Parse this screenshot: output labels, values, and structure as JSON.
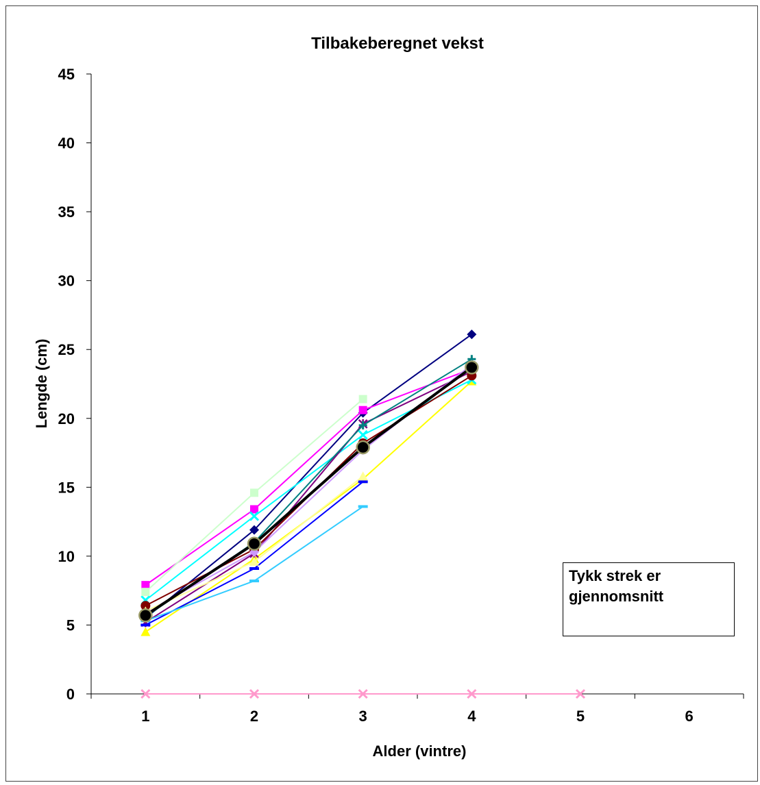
{
  "chart_data": {
    "type": "line",
    "title": "Tilbakeberegnet vekst",
    "xlabel": "Alder (vintre)",
    "ylabel": "Lengde (cm)",
    "x_ticks": [
      "1",
      "2",
      "3",
      "4",
      "5",
      "6"
    ],
    "y_ticks": [
      "0",
      "5",
      "10",
      "15",
      "20",
      "25",
      "30",
      "35",
      "40",
      "45"
    ],
    "ylim": [
      0,
      45
    ],
    "xlim": [
      0.5,
      6.5
    ],
    "grid": false,
    "legend": "none",
    "series": [
      {
        "color": "#000080",
        "marker": "diamond",
        "x": [
          1,
          2,
          3,
          4
        ],
        "values": [
          5.5,
          11.9,
          20.4,
          26.1
        ]
      },
      {
        "color": "#ff00ff",
        "marker": "square",
        "x": [
          1,
          2,
          3,
          4
        ],
        "values": [
          7.9,
          13.4,
          20.6,
          23.6
        ]
      },
      {
        "color": "#ffff00",
        "marker": "triangle",
        "x": [
          1,
          2,
          3,
          4
        ],
        "values": [
          4.5,
          9.8,
          15.6,
          22.7
        ]
      },
      {
        "color": "#00ffff",
        "marker": "x",
        "x": [
          1,
          2,
          3,
          4
        ],
        "values": [
          6.8,
          12.9,
          18.8,
          22.8
        ]
      },
      {
        "color": "#800080",
        "marker": "star",
        "x": [
          1,
          2,
          3,
          4
        ],
        "values": [
          5.2,
          10.2,
          19.6,
          23.4
        ]
      },
      {
        "color": "#800000",
        "marker": "circle",
        "x": [
          1,
          2,
          3,
          4
        ],
        "values": [
          6.4,
          10.5,
          18.2,
          23.1
        ]
      },
      {
        "color": "#008080",
        "marker": "plus",
        "x": [
          1,
          2,
          3,
          4
        ],
        "values": [
          5.6,
          11.0,
          19.5,
          24.3
        ]
      },
      {
        "color": "#0000ff",
        "marker": "dash",
        "x": [
          1,
          2,
          3
        ],
        "values": [
          5.0,
          9.1,
          15.4
        ]
      },
      {
        "color": "#cc99ff",
        "marker": "diamond",
        "x": [
          1,
          2,
          3,
          4
        ],
        "values": [
          5.9,
          10.3,
          17.7,
          23.9
        ]
      },
      {
        "color": "#ccffcc",
        "marker": "square",
        "x": [
          1,
          2,
          3
        ],
        "values": [
          7.4,
          14.6,
          21.4
        ]
      },
      {
        "color": "#ffff99",
        "marker": "triangle",
        "x": [
          1,
          2,
          3
        ],
        "values": [
          6.0,
          9.6,
          15.8
        ]
      },
      {
        "color": "#33ccff",
        "marker": "dash",
        "x": [
          1,
          2,
          3
        ],
        "values": [
          5.3,
          8.2,
          13.6
        ]
      },
      {
        "color": "#ff99cc",
        "marker": "x",
        "x": [
          1,
          2,
          3,
          4,
          5
        ],
        "values": [
          0,
          0,
          0,
          0,
          0
        ]
      },
      {
        "color": "#000000",
        "marker": "circle-avg",
        "width": 4,
        "x": [
          1,
          2,
          3,
          4
        ],
        "values": [
          5.7,
          10.9,
          17.9,
          23.7
        ]
      }
    ],
    "note": [
      "Tykk strek er",
      "gjennomsnitt"
    ]
  }
}
